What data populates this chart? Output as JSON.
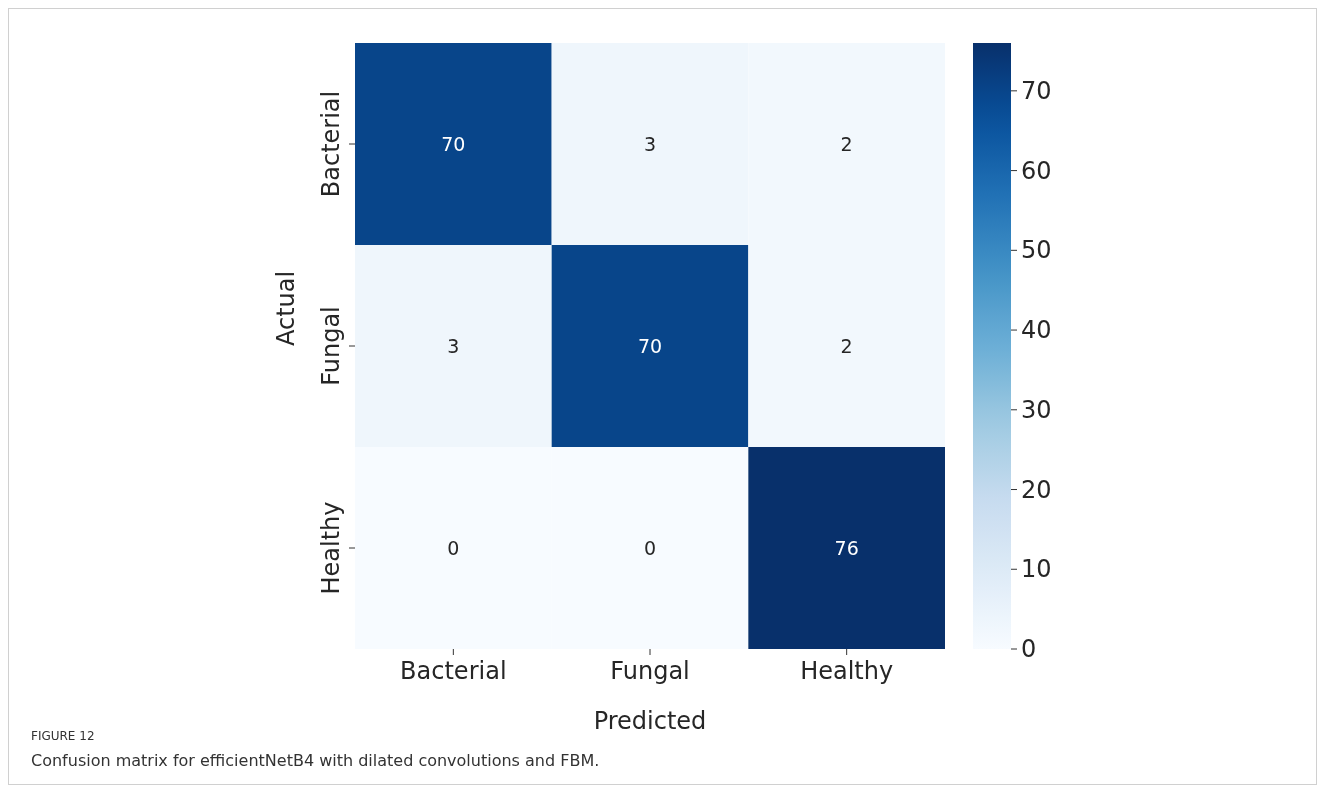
{
  "chart_data": {
    "type": "heatmap",
    "xlabel": "Predicted",
    "ylabel": "Actual",
    "categories": [
      "Bacterial",
      "Fungal",
      "Healthy"
    ],
    "y_categories": [
      "Bacterial",
      "Fungal",
      "Healthy"
    ],
    "cells": [
      [
        70,
        3,
        2
      ],
      [
        3,
        70,
        2
      ],
      [
        0,
        0,
        76
      ]
    ],
    "data_labels": true,
    "clim": [
      0,
      76
    ],
    "cticks": [
      0,
      10,
      20,
      30,
      40,
      50,
      60,
      70
    ],
    "annotations": [
      "FIGURE 12",
      "Confusion matrix for efficientNetB4 with dilated convolutions and FBM."
    ]
  }
}
